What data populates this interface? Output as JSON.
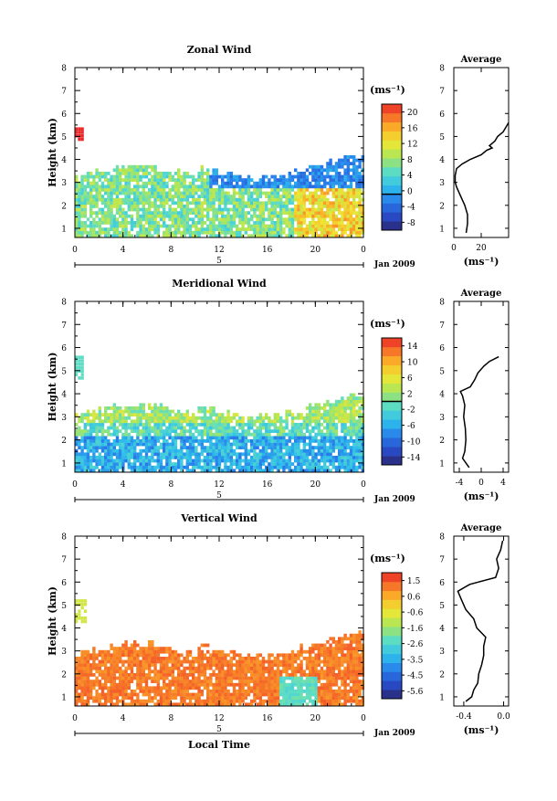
{
  "chart_data": [
    {
      "type": "heatmap",
      "title": "Zonal Wind",
      "ylabel": "Height (km)",
      "ylim": [
        0.6,
        8.0
      ],
      "yticks": [
        "1",
        "2",
        "3",
        "4",
        "5",
        "6",
        "7",
        "8"
      ],
      "xlim": [
        0,
        24
      ],
      "xticks": [
        "0",
        "4",
        "8",
        "12",
        "16",
        "20",
        "0"
      ],
      "date_row_label": "5",
      "date_label": "Jan 2009",
      "colorbar": {
        "unit_label": "(ms⁻¹)",
        "range": [
          -8,
          20
        ],
        "ticks": [
          "-8",
          "-4",
          "0",
          "4",
          "8",
          "12",
          "16",
          "20"
        ],
        "contour_level": 0
      },
      "average_profile": {
        "title": "Average",
        "xlabel": "(ms⁻¹)",
        "xlim": [
          0,
          40
        ],
        "xticks": [
          "0",
          "20"
        ],
        "height": [
          0.8,
          1.2,
          1.6,
          2.0,
          2.4,
          2.8,
          3.0,
          3.3,
          3.6,
          3.8,
          4.0,
          4.2,
          4.4,
          4.5,
          4.6,
          4.8,
          5.0,
          5.2,
          5.4,
          5.6
        ],
        "value": [
          9,
          10,
          10,
          8,
          5,
          2,
          1,
          1,
          2,
          6,
          12,
          20,
          24,
          28,
          26,
          30,
          32,
          36,
          38,
          40
        ]
      },
      "echo_top_km": 3.9,
      "top_patch": {
        "type": "strong-positive",
        "time_h": [
          0,
          0.7
        ],
        "height_km": [
          4.8,
          5.3
        ],
        "value": 20
      }
    },
    {
      "type": "heatmap",
      "title": "Meridional Wind",
      "ylabel": "Height (km)",
      "ylim": [
        0.6,
        8.0
      ],
      "yticks": [
        "1",
        "2",
        "3",
        "4",
        "5",
        "6",
        "7",
        "8"
      ],
      "xlim": [
        0,
        24
      ],
      "xticks": [
        "0",
        "4",
        "8",
        "12",
        "16",
        "20",
        "0"
      ],
      "date_row_label": "5",
      "date_label": "Jan 2009",
      "colorbar": {
        "unit_label": "(ms⁻¹)",
        "range": [
          -14,
          14
        ],
        "ticks": [
          "-14",
          "-10",
          "-6",
          "-2",
          "2",
          "6",
          "10",
          "14"
        ],
        "contour_level": 0
      },
      "average_profile": {
        "title": "Average",
        "xlabel": "(ms⁻¹)",
        "xlim": [
          -5,
          5
        ],
        "xticks": [
          "-4",
          "0",
          "4"
        ],
        "height": [
          0.8,
          1.2,
          1.5,
          2.0,
          2.5,
          3.0,
          3.5,
          3.9,
          4.1,
          4.3,
          4.6,
          4.9,
          5.2,
          5.4,
          5.6
        ],
        "value": [
          -2.2,
          -3.4,
          -3.0,
          -2.8,
          -2.9,
          -3.2,
          -3.0,
          -3.4,
          -3.8,
          -2.0,
          -1.2,
          -0.6,
          0.5,
          1.5,
          3.2
        ]
      },
      "echo_top_km": 3.7,
      "top_patch": {
        "type": "weak",
        "time_h": [
          0,
          0.7
        ],
        "height_km": [
          4.6,
          5.6
        ],
        "value": -1
      }
    },
    {
      "type": "heatmap",
      "title": "Vertical Wind",
      "ylabel": "Height (km)",
      "xlabel": "Local Time",
      "ylim": [
        0.6,
        8.0
      ],
      "yticks": [
        "1",
        "2",
        "3",
        "4",
        "5",
        "6",
        "7",
        "8"
      ],
      "xlim": [
        0,
        24
      ],
      "xticks": [
        "0",
        "4",
        "8",
        "12",
        "16",
        "20",
        "0"
      ],
      "date_row_label": "5",
      "date_label": "Jan 2009",
      "colorbar": {
        "unit_label": "(ms⁻¹)",
        "range": [
          -5.6,
          1.5
        ],
        "ticks": [
          "-5.6",
          "-4.5",
          "-3.5",
          "-2.6",
          "-1.6",
          "-0.6",
          "0.6",
          "1.5"
        ]
      },
      "average_profile": {
        "title": "Average",
        "xlabel": "(ms⁻¹)",
        "xlim": [
          -0.5,
          0.05
        ],
        "xticks": [
          "-0.4",
          "0.0"
        ],
        "height": [
          0.8,
          1.0,
          1.3,
          1.6,
          2.0,
          2.4,
          2.8,
          3.2,
          3.6,
          4.0,
          4.4,
          4.8,
          5.2,
          5.6,
          5.9,
          6.2,
          6.6,
          7.0,
          7.4,
          7.8
        ],
        "value": [
          -0.38,
          -0.32,
          -0.3,
          -0.26,
          -0.25,
          -0.22,
          -0.2,
          -0.2,
          -0.18,
          -0.27,
          -0.3,
          -0.38,
          -0.42,
          -0.46,
          -0.34,
          -0.08,
          -0.05,
          -0.07,
          -0.03,
          -0.01
        ]
      },
      "echo_top_km": 3.5,
      "top_patch": {
        "type": "weak",
        "time_h": [
          0,
          0.8
        ],
        "height_km": [
          4.2,
          5.2
        ],
        "value": -1
      }
    }
  ]
}
